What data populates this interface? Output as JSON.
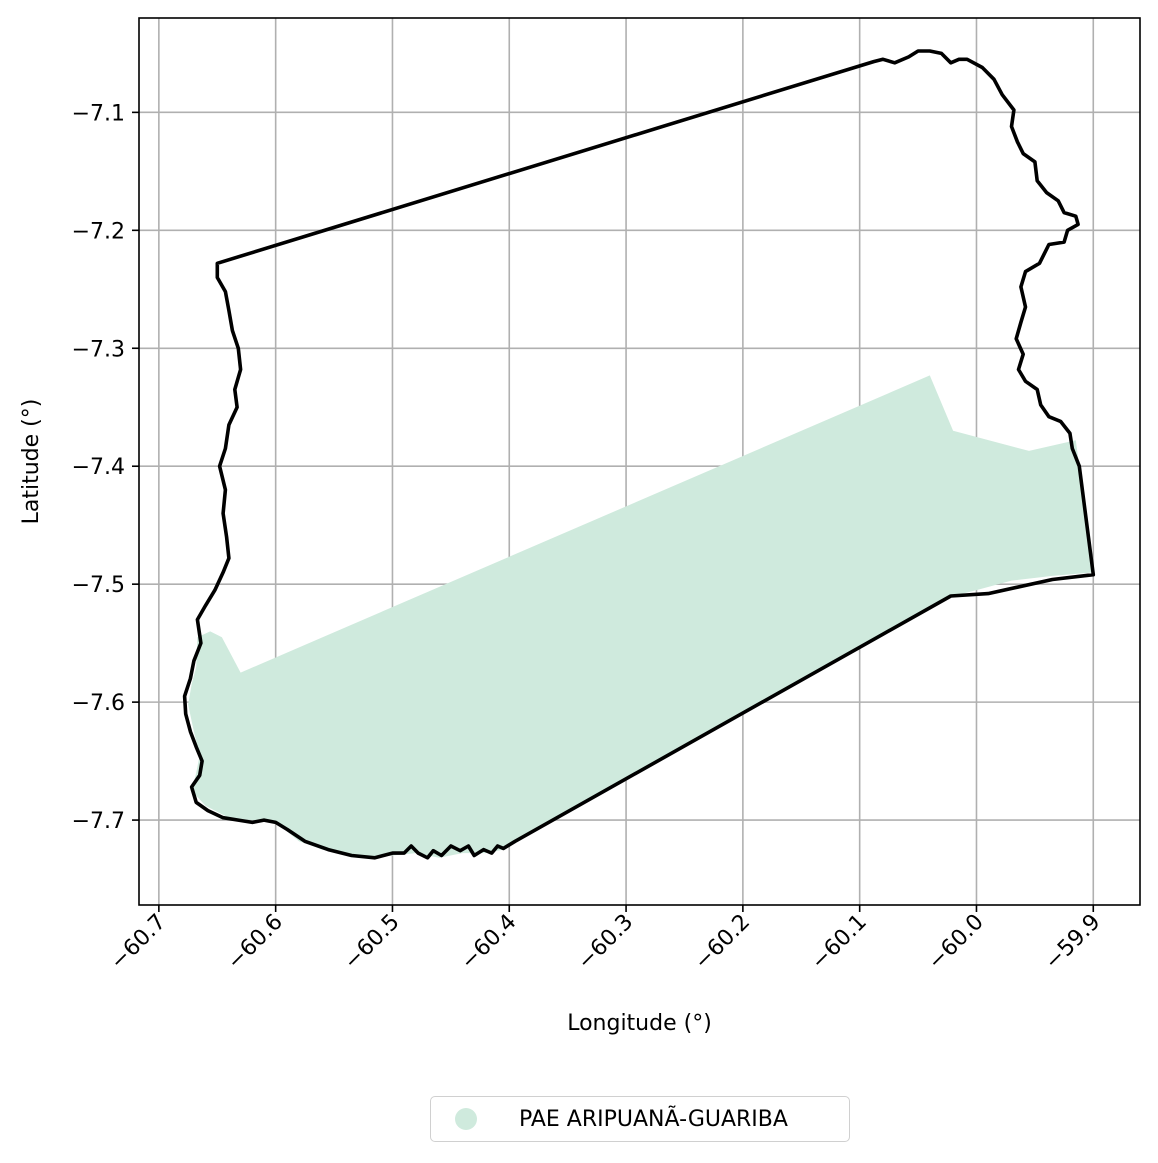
{
  "chart_data": {
    "type": "map",
    "xlabel": "Longitude (°)",
    "ylabel": "Latitude (°)",
    "xlim": [
      -60.717,
      -59.86
    ],
    "ylim": [
      -7.772,
      -7.02
    ],
    "xticks": [
      -60.7,
      -60.6,
      -60.5,
      -60.4,
      -60.3,
      -60.2,
      -60.1,
      -60.0,
      -59.9
    ],
    "xtick_labels": [
      "−60.7",
      "−60.6",
      "−60.5",
      "−60.4",
      "−60.3",
      "−60.2",
      "−60.1",
      "−60.0",
      "−59.9"
    ],
    "yticks": [
      -7.1,
      -7.2,
      -7.3,
      -7.4,
      -7.5,
      -7.6,
      -7.7
    ],
    "ytick_labels": [
      "−7.1",
      "−7.2",
      "−7.3",
      "−7.4",
      "−7.5",
      "−7.6",
      "−7.7"
    ],
    "grid": true,
    "legend_placement": "bottom-center, below plot",
    "legend": [
      {
        "label": "PAE ARIPUANÃ-GUARIBA",
        "color": "#cfeadd"
      }
    ],
    "series": [
      {
        "name": "PAE ARIPUANÃ-GUARIBA",
        "kind": "filled-polygon",
        "color": "#cfeadd",
        "coordinates": [
          [
            -60.667,
            -7.545
          ],
          [
            -60.656,
            -7.54
          ],
          [
            -60.646,
            -7.545
          ],
          [
            -60.63,
            -7.575
          ],
          [
            -60.04,
            -7.323
          ],
          [
            -60.02,
            -7.37
          ],
          [
            -59.955,
            -7.387
          ],
          [
            -59.915,
            -7.378
          ],
          [
            -59.9,
            -7.49
          ],
          [
            -59.935,
            -7.493
          ],
          [
            -59.97,
            -7.497
          ],
          [
            -60.0,
            -7.505
          ],
          [
            -60.02,
            -7.51
          ],
          [
            -60.395,
            -7.718
          ],
          [
            -60.405,
            -7.725
          ],
          [
            -60.42,
            -7.728
          ],
          [
            -60.44,
            -7.728
          ],
          [
            -60.46,
            -7.732
          ],
          [
            -60.48,
            -7.728
          ],
          [
            -60.5,
            -7.73
          ],
          [
            -60.52,
            -7.732
          ],
          [
            -60.535,
            -7.73
          ],
          [
            -60.56,
            -7.725
          ],
          [
            -60.58,
            -7.718
          ],
          [
            -60.6,
            -7.702
          ],
          [
            -60.62,
            -7.7
          ],
          [
            -60.64,
            -7.698
          ],
          [
            -60.66,
            -7.688
          ],
          [
            -60.672,
            -7.675
          ],
          [
            -60.668,
            -7.66
          ],
          [
            -60.665,
            -7.645
          ],
          [
            -60.67,
            -7.625
          ],
          [
            -60.675,
            -7.602
          ],
          [
            -60.672,
            -7.585
          ],
          [
            -60.668,
            -7.57
          ]
        ]
      },
      {
        "name": "",
        "kind": "boundary-outline",
        "color": "#000000",
        "coordinates": [
          [
            -60.65,
            -7.228
          ],
          [
            -60.088,
            -7.057
          ],
          [
            -60.08,
            -7.055
          ],
          [
            -60.07,
            -7.058
          ],
          [
            -60.058,
            -7.053
          ],
          [
            -60.05,
            -7.048
          ],
          [
            -60.04,
            -7.048
          ],
          [
            -60.03,
            -7.05
          ],
          [
            -60.022,
            -7.058
          ],
          [
            -60.015,
            -7.055
          ],
          [
            -60.008,
            -7.055
          ],
          [
            -59.995,
            -7.062
          ],
          [
            -59.985,
            -7.072
          ],
          [
            -59.978,
            -7.085
          ],
          [
            -59.968,
            -7.098
          ],
          [
            -59.97,
            -7.112
          ],
          [
            -59.965,
            -7.125
          ],
          [
            -59.96,
            -7.135
          ],
          [
            -59.95,
            -7.142
          ],
          [
            -59.948,
            -7.158
          ],
          [
            -59.94,
            -7.168
          ],
          [
            -59.93,
            -7.175
          ],
          [
            -59.925,
            -7.185
          ],
          [
            -59.915,
            -7.188
          ],
          [
            -59.913,
            -7.195
          ],
          [
            -59.922,
            -7.2
          ],
          [
            -59.925,
            -7.21
          ],
          [
            -59.938,
            -7.212
          ],
          [
            -59.946,
            -7.228
          ],
          [
            -59.958,
            -7.235
          ],
          [
            -59.962,
            -7.248
          ],
          [
            -59.958,
            -7.265
          ],
          [
            -59.962,
            -7.278
          ],
          [
            -59.966,
            -7.292
          ],
          [
            -59.96,
            -7.305
          ],
          [
            -59.964,
            -7.318
          ],
          [
            -59.958,
            -7.328
          ],
          [
            -59.948,
            -7.335
          ],
          [
            -59.945,
            -7.348
          ],
          [
            -59.938,
            -7.358
          ],
          [
            -59.928,
            -7.362
          ],
          [
            -59.92,
            -7.372
          ],
          [
            -59.918,
            -7.385
          ],
          [
            -59.912,
            -7.4
          ],
          [
            -59.9,
            -7.492
          ],
          [
            -59.935,
            -7.496
          ],
          [
            -59.99,
            -7.508
          ],
          [
            -60.022,
            -7.51
          ],
          [
            -60.395,
            -7.718
          ],
          [
            -60.405,
            -7.724
          ],
          [
            -60.41,
            -7.722
          ],
          [
            -60.415,
            -7.728
          ],
          [
            -60.422,
            -7.725
          ],
          [
            -60.43,
            -7.73
          ],
          [
            -60.435,
            -7.722
          ],
          [
            -60.442,
            -7.726
          ],
          [
            -60.45,
            -7.722
          ],
          [
            -60.458,
            -7.73
          ],
          [
            -60.465,
            -7.726
          ],
          [
            -60.47,
            -7.732
          ],
          [
            -60.478,
            -7.728
          ],
          [
            -60.484,
            -7.722
          ],
          [
            -60.49,
            -7.728
          ],
          [
            -60.5,
            -7.728
          ],
          [
            -60.515,
            -7.732
          ],
          [
            -60.535,
            -7.73
          ],
          [
            -60.555,
            -7.725
          ],
          [
            -60.575,
            -7.718
          ],
          [
            -60.59,
            -7.708
          ],
          [
            -60.6,
            -7.702
          ],
          [
            -60.61,
            -7.7
          ],
          [
            -60.62,
            -7.702
          ],
          [
            -60.632,
            -7.7
          ],
          [
            -60.645,
            -7.698
          ],
          [
            -60.658,
            -7.692
          ],
          [
            -60.668,
            -7.685
          ],
          [
            -60.672,
            -7.672
          ],
          [
            -60.665,
            -7.662
          ],
          [
            -60.663,
            -7.65
          ],
          [
            -60.668,
            -7.638
          ],
          [
            -60.673,
            -7.625
          ],
          [
            -60.677,
            -7.61
          ],
          [
            -60.678,
            -7.595
          ],
          [
            -60.673,
            -7.58
          ],
          [
            -60.67,
            -7.565
          ],
          [
            -60.664,
            -7.55
          ],
          [
            -60.667,
            -7.53
          ],
          [
            -60.66,
            -7.518
          ],
          [
            -60.652,
            -7.505
          ],
          [
            -60.645,
            -7.49
          ],
          [
            -60.64,
            -7.478
          ],
          [
            -60.642,
            -7.46
          ],
          [
            -60.645,
            -7.44
          ],
          [
            -60.643,
            -7.42
          ],
          [
            -60.648,
            -7.4
          ],
          [
            -60.643,
            -7.385
          ],
          [
            -60.64,
            -7.365
          ],
          [
            -60.633,
            -7.35
          ],
          [
            -60.635,
            -7.335
          ],
          [
            -60.63,
            -7.318
          ],
          [
            -60.632,
            -7.3
          ],
          [
            -60.637,
            -7.285
          ],
          [
            -60.64,
            -7.268
          ],
          [
            -60.643,
            -7.252
          ],
          [
            -60.65,
            -7.24
          ],
          [
            -60.65,
            -7.228
          ]
        ]
      }
    ]
  }
}
